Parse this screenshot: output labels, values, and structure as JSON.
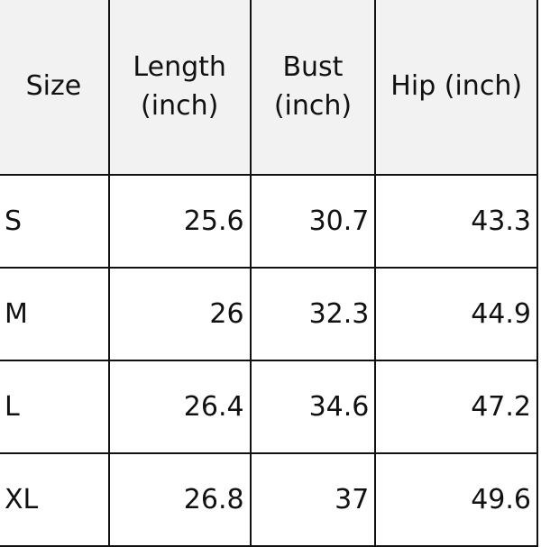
{
  "table": {
    "headers": [
      "Size",
      "Length (inch)",
      "Bust (inch)",
      "Hip (inch)"
    ],
    "rows": [
      [
        "S",
        "25.6",
        "30.7",
        "43.3"
      ],
      [
        "M",
        "26",
        "32.3",
        "44.9"
      ],
      [
        "L",
        "26.4",
        "34.6",
        "47.2"
      ],
      [
        "XL",
        "26.8",
        "37",
        "49.6"
      ]
    ],
    "header_bg": "#f2f2f2"
  }
}
